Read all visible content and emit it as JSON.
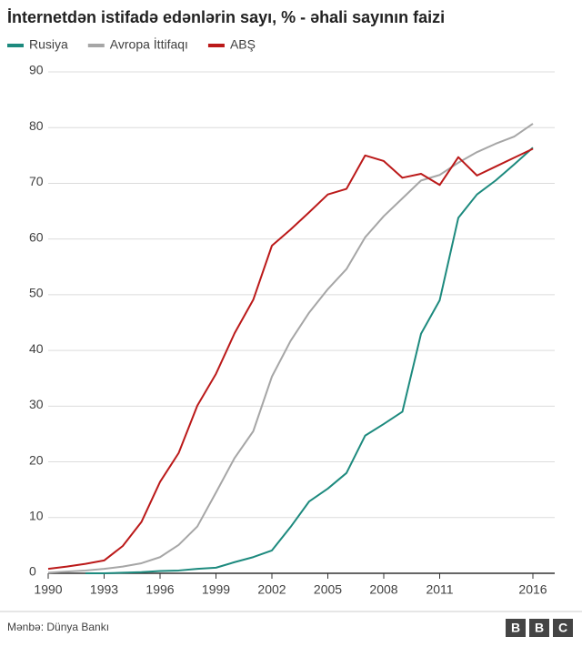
{
  "chart_data": {
    "type": "line",
    "title": "İnternetdən istifadə edənlərin sayı, % - əhali sayının faizi",
    "x": [
      1990,
      1991,
      1992,
      1993,
      1994,
      1995,
      1996,
      1997,
      1998,
      1999,
      2000,
      2001,
      2002,
      2003,
      2004,
      2005,
      2006,
      2007,
      2008,
      2009,
      2010,
      2011,
      2012,
      2013,
      2014,
      2015,
      2016
    ],
    "series": [
      {
        "name": "Rusiya",
        "color": "#1d8a7e",
        "values": [
          null,
          null,
          0,
          0,
          0.1,
          0.2,
          0.4,
          0.5,
          0.8,
          1.0,
          2.0,
          2.9,
          4.1,
          8.3,
          12.9,
          15.2,
          18,
          24.7,
          26.8,
          29,
          43,
          49,
          63.8,
          68,
          70.5,
          73.4,
          76.4
        ]
      },
      {
        "name": "Avropa İttifaqı",
        "color": "#a6a6a6",
        "values": [
          0.1,
          0.3,
          0.5,
          0.8,
          1.2,
          1.8,
          2.9,
          5.1,
          8.4,
          14.5,
          20.7,
          25.5,
          35.3,
          41.7,
          46.8,
          51,
          54.6,
          60.3,
          64.1,
          67.3,
          70.5,
          71.5,
          73.7,
          75.6,
          77.1,
          78.4,
          80.7
        ]
      },
      {
        "name": "ABŞ",
        "color": "#bb1919",
        "values": [
          0.8,
          1.2,
          1.7,
          2.3,
          4.9,
          9.2,
          16.4,
          21.6,
          30.1,
          35.8,
          43.1,
          49.1,
          58.8,
          61.7,
          64.8,
          68,
          69,
          75,
          74,
          71,
          71.7,
          69.7,
          74.7,
          71.4,
          73,
          74.6,
          76.2
        ]
      }
    ],
    "xlim": [
      1990,
      2016
    ],
    "xticks": [
      1990,
      1993,
      1996,
      1999,
      2002,
      2005,
      2008,
      2011,
      2016
    ],
    "ylim": [
      0,
      90
    ],
    "yticks": [
      0,
      10,
      20,
      30,
      40,
      50,
      60,
      70,
      80,
      90
    ],
    "grid": true,
    "source": "Mənbə: Dünya Bankı",
    "logo": [
      "B",
      "B",
      "C"
    ]
  }
}
